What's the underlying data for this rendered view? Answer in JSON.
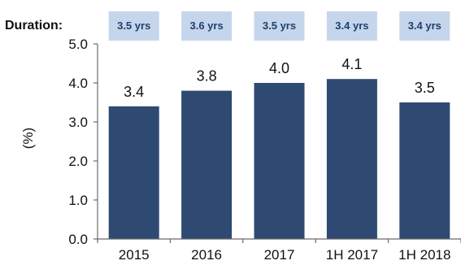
{
  "chart_data": {
    "type": "bar",
    "header_label": "Duration:",
    "categories": [
      "2015",
      "2016",
      "2017",
      "1H 2017",
      "1H 2018"
    ],
    "values": [
      3.4,
      3.8,
      4.0,
      4.1,
      3.5
    ],
    "data_labels": [
      "3.4",
      "3.8",
      "4.0",
      "4.1",
      "3.5"
    ],
    "duration_badges": [
      "3.5 yrs",
      "3.6 yrs",
      "3.5 yrs",
      "3.4 yrs",
      "3.4 yrs"
    ],
    "ylabel": "(%)",
    "ylim": [
      0,
      5
    ],
    "yticks": [
      "0.0",
      "1.0",
      "2.0",
      "3.0",
      "4.0",
      "5.0"
    ],
    "grid": false,
    "colors": {
      "bar": "#2e4a72",
      "badge_fill": "#c5d6ec",
      "badge_text": "#1f3f6b",
      "axis": "#6b6b6b"
    }
  }
}
